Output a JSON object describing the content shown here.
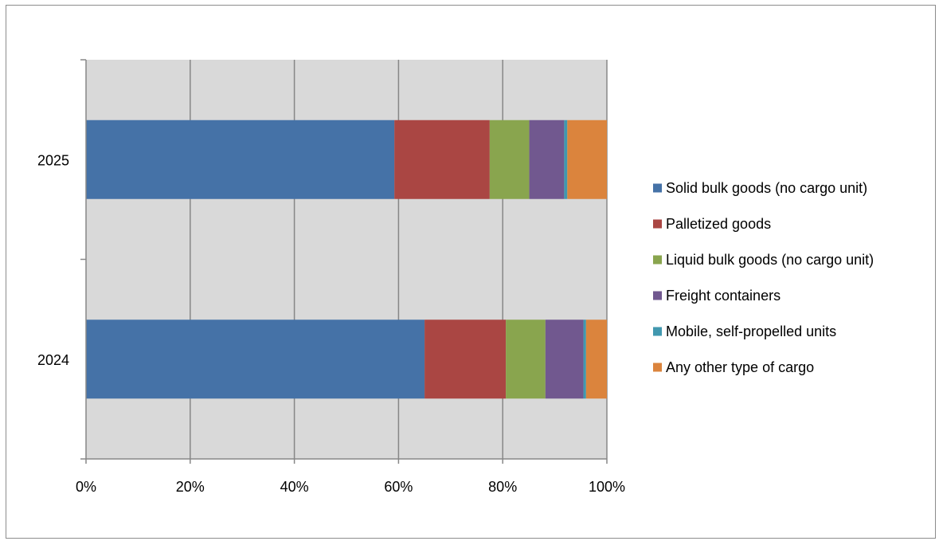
{
  "chart_data": {
    "type": "bar",
    "orientation": "horizontal",
    "stacking": "percent",
    "categories": [
      "2025",
      "2024"
    ],
    "series": [
      {
        "name": "Solid bulk goods (no cargo unit)",
        "color": "#4572a7",
        "values": [
          59.2,
          65.0
        ]
      },
      {
        "name": "Palletized goods",
        "color": "#aa4643",
        "values": [
          18.3,
          15.6
        ]
      },
      {
        "name": "Liquid bulk goods (no cargo unit)",
        "color": "#89a54e",
        "values": [
          7.6,
          7.6
        ]
      },
      {
        "name": "Freight containers",
        "color": "#71588f",
        "values": [
          6.7,
          7.3
        ]
      },
      {
        "name": "Mobile, self-propelled units",
        "color": "#4198af",
        "values": [
          0.6,
          0.5
        ]
      },
      {
        "name": "Any other type of cargo",
        "color": "#db843d",
        "values": [
          7.6,
          4.0
        ]
      }
    ],
    "xlim": [
      0,
      100
    ],
    "x_ticks": [
      "0%",
      "20%",
      "40%",
      "60%",
      "80%",
      "100%"
    ],
    "title": "",
    "xlabel": "",
    "ylabel": "",
    "grid": true,
    "plot_background": "#d9d9d9",
    "legend_position": "right"
  }
}
